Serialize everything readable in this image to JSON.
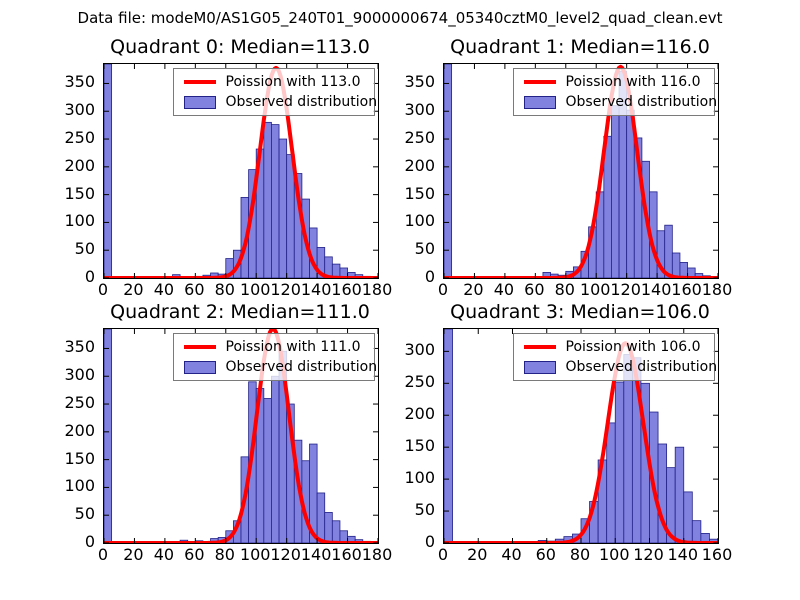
{
  "figure_title": "Data file: modeM0/AS1G05_240T01_9000000674_05340cztM0_level2_quad_clean.evt",
  "colors": {
    "hist_fill": "#8181e0",
    "hist_edge": "#222288",
    "curve": "#ff0000",
    "axis": "#000000",
    "legend_border": "#7a7a7a"
  },
  "chart_data": [
    {
      "type": "bar",
      "subtype": "histogram-with-fit-line",
      "title": "Quadrant 0: Median=113.0",
      "median": 113.0,
      "legend": {
        "line": "Poission with 113.0",
        "patch": "Observed distribution"
      },
      "legend_position": "upper right",
      "grid": false,
      "bin_width": 5,
      "bars": [
        [
          0,
          400
        ],
        [
          10,
          2
        ],
        [
          30,
          2
        ],
        [
          45,
          6
        ],
        [
          60,
          3
        ],
        [
          65,
          5
        ],
        [
          70,
          9
        ],
        [
          75,
          7
        ],
        [
          80,
          35
        ],
        [
          85,
          50
        ],
        [
          90,
          145
        ],
        [
          95,
          195
        ],
        [
          100,
          232
        ],
        [
          105,
          280
        ],
        [
          110,
          276
        ],
        [
          115,
          250
        ],
        [
          120,
          222
        ],
        [
          125,
          188
        ],
        [
          130,
          142
        ],
        [
          135,
          90
        ],
        [
          140,
          55
        ],
        [
          145,
          38
        ],
        [
          150,
          25
        ],
        [
          155,
          18
        ],
        [
          160,
          10
        ],
        [
          165,
          6
        ],
        [
          170,
          3
        ]
      ],
      "curve": {
        "shape": "gaussian",
        "mu": 113,
        "sigma": 10.6,
        "amp": 378
      },
      "xlim": [
        0,
        180
      ],
      "ylim": [
        0,
        385
      ],
      "xticks": [
        0,
        20,
        40,
        60,
        80,
        100,
        120,
        140,
        160,
        180
      ],
      "yticks": [
        0,
        50,
        100,
        150,
        200,
        250,
        300,
        350
      ]
    },
    {
      "type": "bar",
      "subtype": "histogram-with-fit-line",
      "title": "Quadrant 1: Median=116.0",
      "median": 116.0,
      "legend": {
        "line": "Poission with 116.0",
        "patch": "Observed distribution"
      },
      "legend_position": "upper right",
      "grid": false,
      "bin_width": 5,
      "bars": [
        [
          0,
          400
        ],
        [
          15,
          2
        ],
        [
          40,
          2
        ],
        [
          65,
          10
        ],
        [
          70,
          7
        ],
        [
          75,
          5
        ],
        [
          80,
          12
        ],
        [
          85,
          20
        ],
        [
          90,
          48
        ],
        [
          95,
          92
        ],
        [
          100,
          155
        ],
        [
          105,
          255
        ],
        [
          110,
          310
        ],
        [
          115,
          372
        ],
        [
          120,
          302
        ],
        [
          125,
          252
        ],
        [
          130,
          210
        ],
        [
          135,
          155
        ],
        [
          140,
          85
        ],
        [
          145,
          95
        ],
        [
          150,
          45
        ],
        [
          155,
          28
        ],
        [
          160,
          18
        ],
        [
          165,
          8
        ],
        [
          170,
          4
        ]
      ],
      "curve": {
        "shape": "gaussian",
        "mu": 116,
        "sigma": 10.8,
        "amp": 380
      },
      "xlim": [
        0,
        180
      ],
      "ylim": [
        0,
        385
      ],
      "xticks": [
        0,
        20,
        40,
        60,
        80,
        100,
        120,
        140,
        160,
        180
      ],
      "yticks": [
        0,
        50,
        100,
        150,
        200,
        250,
        300,
        350
      ]
    },
    {
      "type": "bar",
      "subtype": "histogram-with-fit-line",
      "title": "Quadrant 2: Median=111.0",
      "median": 111.0,
      "legend": {
        "line": "Poission with 111.0",
        "patch": "Observed distribution"
      },
      "legend_position": "upper right",
      "grid": false,
      "bin_width": 5,
      "bars": [
        [
          0,
          400
        ],
        [
          20,
          2
        ],
        [
          50,
          5
        ],
        [
          60,
          4
        ],
        [
          70,
          8
        ],
        [
          75,
          10
        ],
        [
          80,
          22
        ],
        [
          85,
          40
        ],
        [
          90,
          155
        ],
        [
          95,
          290
        ],
        [
          100,
          278
        ],
        [
          105,
          260
        ],
        [
          110,
          300
        ],
        [
          115,
          345
        ],
        [
          120,
          250
        ],
        [
          125,
          185
        ],
        [
          130,
          148
        ],
        [
          135,
          178
        ],
        [
          140,
          90
        ],
        [
          145,
          55
        ],
        [
          150,
          40
        ],
        [
          155,
          22
        ],
        [
          160,
          12
        ],
        [
          165,
          6
        ],
        [
          170,
          3
        ]
      ],
      "curve": {
        "shape": "gaussian",
        "mu": 111,
        "sigma": 10.5,
        "amp": 386
      },
      "xlim": [
        0,
        180
      ],
      "ylim": [
        0,
        385
      ],
      "xticks": [
        0,
        20,
        40,
        60,
        80,
        100,
        120,
        140,
        160,
        180
      ],
      "yticks": [
        0,
        50,
        100,
        150,
        200,
        250,
        300,
        350
      ]
    },
    {
      "type": "bar",
      "subtype": "histogram-with-fit-line",
      "title": "Quadrant 3: Median=106.0",
      "median": 106.0,
      "legend": {
        "line": "Poission with 106.0",
        "patch": "Observed distribution"
      },
      "legend_position": "upper right",
      "grid": false,
      "bin_width": 5,
      "bars": [
        [
          0,
          400
        ],
        [
          25,
          2
        ],
        [
          55,
          4
        ],
        [
          60,
          3
        ],
        [
          65,
          6
        ],
        [
          70,
          10
        ],
        [
          75,
          14
        ],
        [
          80,
          38
        ],
        [
          85,
          65
        ],
        [
          90,
          130
        ],
        [
          95,
          188
        ],
        [
          100,
          252
        ],
        [
          105,
          295
        ],
        [
          110,
          290
        ],
        [
          115,
          250
        ],
        [
          120,
          205
        ],
        [
          125,
          155
        ],
        [
          130,
          118
        ],
        [
          135,
          150
        ],
        [
          140,
          80
        ],
        [
          145,
          35
        ],
        [
          150,
          15
        ],
        [
          155,
          6
        ]
      ],
      "curve": {
        "shape": "gaussian",
        "mu": 106,
        "sigma": 10.3,
        "amp": 313
      },
      "xlim": [
        0,
        160
      ],
      "ylim": [
        0,
        335
      ],
      "xticks": [
        0,
        20,
        40,
        60,
        80,
        100,
        120,
        140,
        160
      ],
      "yticks": [
        0,
        50,
        100,
        150,
        200,
        250,
        300
      ]
    }
  ]
}
